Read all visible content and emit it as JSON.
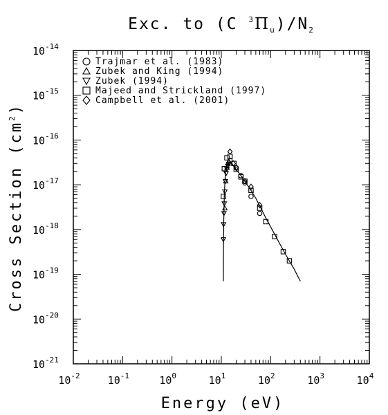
{
  "chart_data": {
    "type": "scatter",
    "title": "Exc. to (C ³Πu)/N₂",
    "title_parts": {
      "prefix": "Exc. to (C ",
      "sup": "3",
      "greek": "Π",
      "sub": "u",
      "suffix": ")/N",
      "sub2": "2"
    },
    "xlabel": "Energy (eV)",
    "ylabel": "Cross Section (cm²)",
    "ylabel_parts": {
      "main": "Cross Section (cm",
      "sup": "2",
      "end": ")"
    },
    "x_scale": "log",
    "y_scale": "log",
    "xlim": [
      0.01,
      10000
    ],
    "ylim": [
      1e-21,
      1e-14
    ],
    "x_ticks": [
      {
        "base": "10",
        "exp": "-2",
        "value": 0.01
      },
      {
        "base": "10",
        "exp": "-1",
        "value": 0.1
      },
      {
        "base": "10",
        "exp": "0",
        "value": 1
      },
      {
        "base": "10",
        "exp": "1",
        "value": 10
      },
      {
        "base": "10",
        "exp": "2",
        "value": 100
      },
      {
        "base": "10",
        "exp": "3",
        "value": 1000
      },
      {
        "base": "10",
        "exp": "4",
        "value": 10000
      }
    ],
    "y_ticks": [
      {
        "base": "10",
        "exp": "-14",
        "value": 1e-14
      },
      {
        "base": "10",
        "exp": "-15",
        "value": 1e-15
      },
      {
        "base": "10",
        "exp": "-16",
        "value": 1e-16
      },
      {
        "base": "10",
        "exp": "-17",
        "value": 1e-17
      },
      {
        "base": "10",
        "exp": "-18",
        "value": 1e-18
      },
      {
        "base": "10",
        "exp": "-19",
        "value": 1e-19
      },
      {
        "base": "10",
        "exp": "-20",
        "value": 1e-20
      },
      {
        "base": "10",
        "exp": "-21",
        "value": 1e-21
      }
    ],
    "legend_position": "top-left",
    "grid": false,
    "series": [
      {
        "name": "Trajmar et al. (1983)",
        "marker": "circle",
        "points": [
          [
            15,
            3.5e-17
          ],
          [
            20,
            2.4e-17
          ],
          [
            25,
            1.6e-17
          ],
          [
            30,
            1.1e-17
          ],
          [
            40,
            5.5e-18
          ],
          [
            60,
            2.3e-18
          ]
        ]
      },
      {
        "name": "Zubek and King (1994)",
        "marker": "triangle-up",
        "points": [
          [
            11.8,
            3e-18
          ],
          [
            12.3,
            1.2e-17
          ],
          [
            13.0,
            2.4e-17
          ],
          [
            14.0,
            3.3e-17
          ],
          [
            15.0,
            3e-17
          ]
        ]
      },
      {
        "name": "Zubek (1994)",
        "marker": "triangle-down",
        "points": [
          [
            11.0,
            6e-19
          ],
          [
            11.1,
            1.3e-18
          ],
          [
            11.3,
            2.3e-18
          ],
          [
            11.5,
            3.8e-18
          ],
          [
            11.8,
            7e-18
          ],
          [
            12.1,
            1.2e-17
          ],
          [
            12.5,
            1.8e-17
          ],
          [
            13.0,
            2.2e-17
          ],
          [
            13.5,
            2.6e-17
          ],
          [
            14.0,
            2.9e-17
          ]
        ]
      },
      {
        "name": "Majeed and Strickland (1997)",
        "marker": "square",
        "points": [
          [
            11.0,
            5.5e-18
          ],
          [
            11.5,
            2.3e-17
          ],
          [
            13.0,
            4e-17
          ],
          [
            15.0,
            4.3e-17
          ],
          [
            18.0,
            3e-17
          ],
          [
            20.0,
            2.2e-17
          ],
          [
            25.0,
            1.5e-17
          ],
          [
            30.0,
            1.2e-17
          ],
          [
            40.0,
            7.5e-18
          ],
          [
            60.0,
            3e-18
          ],
          [
            80.0,
            1.5e-18
          ],
          [
            120.0,
            7e-19
          ],
          [
            180.0,
            3.2e-19
          ],
          [
            240.0,
            2e-19
          ]
        ]
      },
      {
        "name": "Campbell et al. (2001)",
        "marker": "diamond",
        "points": [
          [
            15.0,
            5.5e-17
          ],
          [
            17.5,
            3e-17
          ],
          [
            20.0,
            2.4e-17
          ],
          [
            30.0,
            1.2e-17
          ],
          [
            40.0,
            9e-18
          ],
          [
            60.0,
            3.5e-18
          ]
        ]
      }
    ],
    "fit_curve": [
      [
        11.0,
        7e-20
      ],
      [
        11.05,
        4e-19
      ],
      [
        11.2,
        1.5e-18
      ],
      [
        11.5,
        6e-18
      ],
      [
        12.0,
        1.6e-17
      ],
      [
        13.0,
        3e-17
      ],
      [
        14.0,
        3.6e-17
      ],
      [
        15.0,
        3.4e-17
      ],
      [
        16.0,
        3.1e-17
      ],
      [
        18.0,
        2.6e-17
      ],
      [
        20.0,
        2.2e-17
      ],
      [
        25.0,
        1.6e-17
      ],
      [
        30.0,
        1.2e-17
      ],
      [
        40.0,
        7.5e-18
      ],
      [
        50.0,
        5e-18
      ],
      [
        60.0,
        3.4e-18
      ],
      [
        80.0,
        1.8e-18
      ],
      [
        100.0,
        1.15e-18
      ],
      [
        150.0,
        5e-19
      ],
      [
        200.0,
        2.8e-19
      ],
      [
        300.0,
        1.3e-19
      ],
      [
        400.0,
        7e-20
      ]
    ]
  }
}
